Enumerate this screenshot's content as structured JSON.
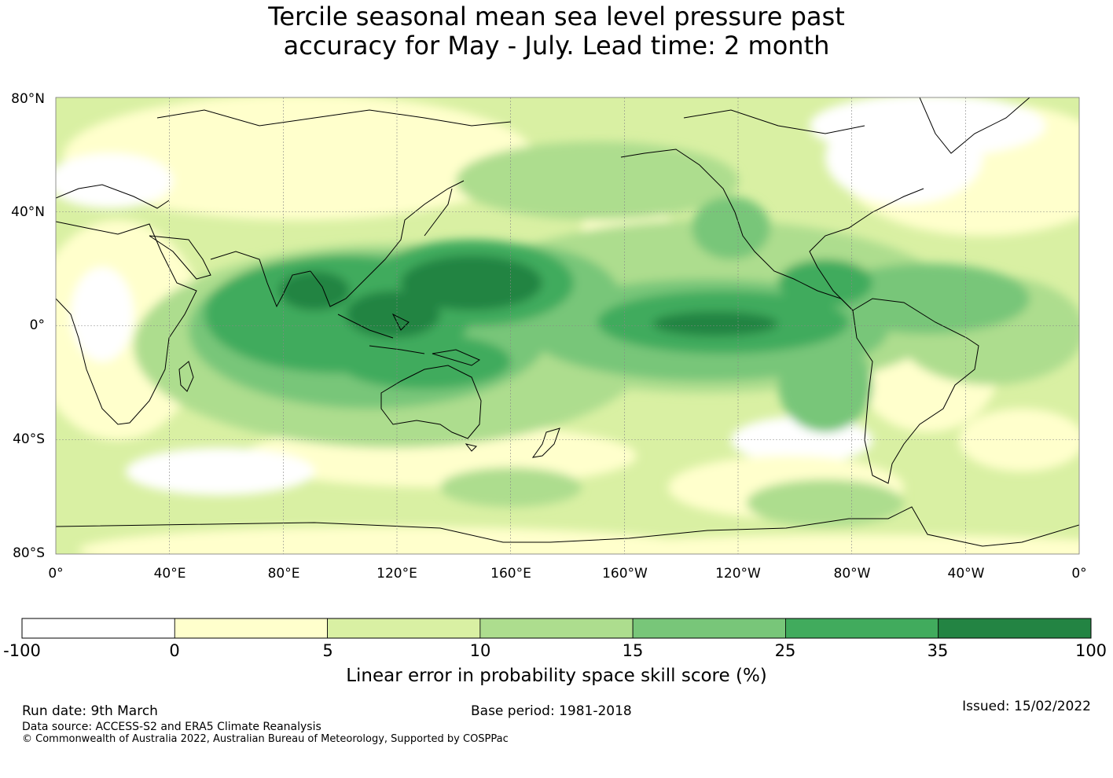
{
  "title": {
    "line1": "Tercile seasonal mean sea level pressure past",
    "line2": "accuracy for May - July. Lead time: 2 month"
  },
  "map": {
    "lat_labels": [
      "80°N",
      "40°N",
      "0°",
      "40°S",
      "80°S"
    ],
    "lon_labels": [
      "0°",
      "40°E",
      "80°E",
      "120°E",
      "160°E",
      "160°W",
      "120°W",
      "80°W",
      "40°W",
      "0°"
    ],
    "lat_range": [
      -80,
      80
    ],
    "lon_range": [
      0,
      360
    ],
    "grid_lats": [
      -40,
      0,
      40
    ],
    "grid_lons": [
      40,
      80,
      120,
      160,
      200,
      240,
      280,
      320
    ]
  },
  "colorbar": {
    "title": "Linear error in probability space skill score (%)",
    "bounds": [
      "-100",
      "0",
      "5",
      "10",
      "15",
      "25",
      "35",
      "100"
    ],
    "colors": [
      "#ffffff",
      "#ffffcc",
      "#d9f0a3",
      "#addd8e",
      "#78c679",
      "#41ab5d",
      "#238443"
    ]
  },
  "footer": {
    "run_date": "Run date: 9th March",
    "base_period": "Base period: 1981-2018",
    "issued": "Issued: 15/02/2022",
    "data_source": "Data source: ACCESS-S2 and ERA5 Climate Reanalysis",
    "copyright": "© Commonwealth of Australia 2022, Australian Bureau of Meteorology, Supported by COSPPac"
  }
}
